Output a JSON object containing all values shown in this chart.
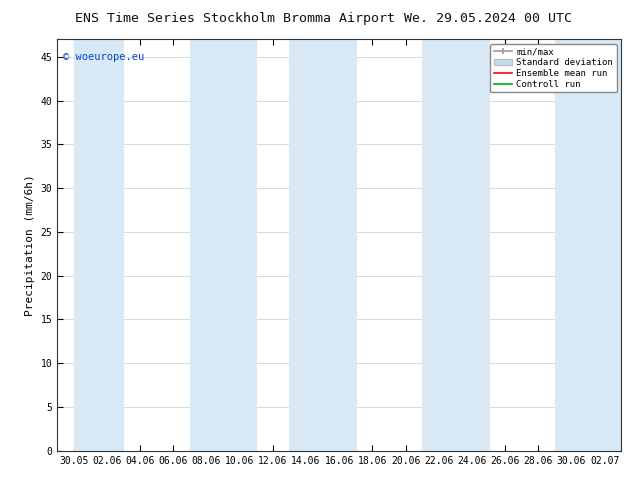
{
  "title_left": "ENS Time Series Stockholm Bromma Airport",
  "title_right": "We. 29.05.2024 00 UTC",
  "ylabel": "Precipitation (mm/6h)",
  "ylim": [
    0,
    47
  ],
  "yticks": [
    0,
    5,
    10,
    15,
    20,
    25,
    30,
    35,
    40,
    45
  ],
  "xtick_labels": [
    "30.05",
    "02.06",
    "04.06",
    "06.06",
    "08.06",
    "10.06",
    "12.06",
    "14.06",
    "16.06",
    "18.06",
    "20.06",
    "22.06",
    "24.06",
    "26.06",
    "28.06",
    "30.06",
    "02.07"
  ],
  "watermark": "© woeurope.eu",
  "legend_entries": [
    "min/max",
    "Standard deviation",
    "Ensemble mean run",
    "Controll run"
  ],
  "band_color": "#d8e8f5",
  "band_edge_color": "#b0ccdd",
  "background_color": "#ffffff",
  "title_fontsize": 9.5,
  "tick_fontsize": 7,
  "ylabel_fontsize": 8,
  "watermark_color": "#0044cc",
  "minmax_color": "#999999",
  "ens_color": "#ff0000",
  "ctrl_color": "#00aa00",
  "std_facecolor": "#c8dcea",
  "std_edgecolor": "#aabbcc"
}
